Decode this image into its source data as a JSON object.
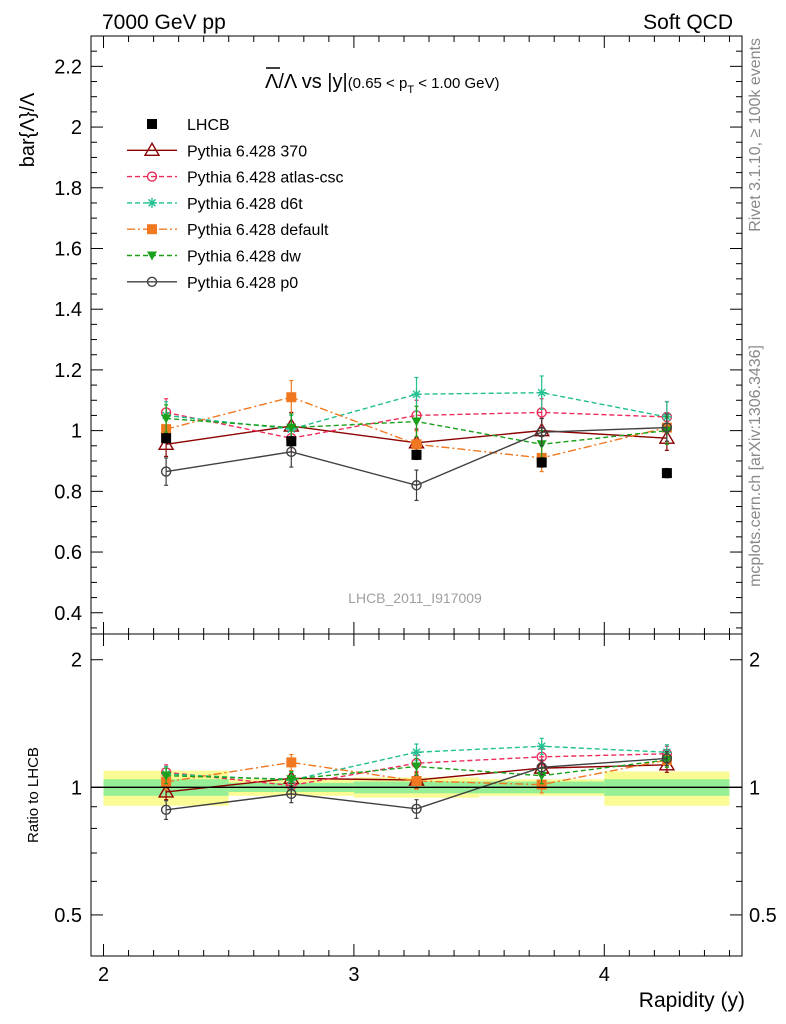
{
  "header": {
    "left": "7000 GeV pp",
    "right": "Soft QCD"
  },
  "side": {
    "top": "Rivet 3.1.10, ≥ 100k events",
    "bottom": "mcplots.cern.ch [arXiv:1306.3436]"
  },
  "chart_data": {
    "type": "line",
    "title": {
      "lambda_bar": "Λ",
      "ratio_text": "/Λ vs |y|",
      "cut_open": "(0.65 < p",
      "cut_sub": "T",
      "cut_close": " < 1.00 GeV)"
    },
    "watermark": "LHCB_2011_I917009",
    "main": {
      "ylabel": "bar{Λ}/Λ",
      "ylim": [
        0.33,
        2.3
      ],
      "yticks": [
        "0.4",
        "0.6",
        "0.8",
        "1",
        "1.2",
        "1.4",
        "1.6",
        "1.8",
        "2",
        "2.2"
      ]
    },
    "ratio": {
      "ylabel": "Ratio to LHCB",
      "ylim": [
        0.4,
        2.3
      ],
      "log": true,
      "yticks": [
        "0.5",
        "1",
        "2"
      ],
      "bands": [
        {
          "x": [
            2.0,
            2.5
          ],
          "inner": [
            0.955,
            1.045
          ],
          "outer": [
            0.905,
            1.095
          ]
        },
        {
          "x": [
            2.5,
            3.0
          ],
          "inner": [
            0.975,
            1.025
          ],
          "outer": [
            0.955,
            1.045
          ]
        },
        {
          "x": [
            3.0,
            3.5
          ],
          "inner": [
            0.968,
            1.032
          ],
          "outer": [
            0.945,
            1.055
          ]
        },
        {
          "x": [
            3.5,
            4.0
          ],
          "inner": [
            0.968,
            1.032
          ],
          "outer": [
            0.955,
            1.045
          ]
        },
        {
          "x": [
            4.0,
            4.5
          ],
          "inner": [
            0.955,
            1.045
          ],
          "outer": [
            0.905,
            1.09
          ]
        }
      ]
    },
    "xlabel": "Rapidity (y)",
    "xlim": [
      1.95,
      4.55
    ],
    "xticks": [
      "2",
      "3",
      "4"
    ],
    "x": [
      2.25,
      2.75,
      3.25,
      3.75,
      4.25
    ],
    "series": [
      {
        "name": "LHCB",
        "color": "#000000",
        "marker": "filled-square",
        "line": "none",
        "values": [
          0.975,
          0.965,
          0.92,
          0.895,
          0.86
        ],
        "errors": [
          0.015,
          0.015,
          0.015,
          0.015,
          0.015
        ],
        "ratio": null
      },
      {
        "name": "Pythia 6.428 370",
        "color": "#8b0000",
        "marker": "open-triangle",
        "line": "solid",
        "values": [
          0.955,
          1.015,
          0.96,
          1.0,
          0.975
        ],
        "errors": [
          0.04,
          0.045,
          0.045,
          0.04,
          0.04
        ],
        "ratio": [
          0.975,
          1.05,
          1.04,
          1.11,
          1.13
        ],
        "ratio_errors": [
          0.04,
          0.045,
          0.045,
          0.045,
          0.045
        ]
      },
      {
        "name": "Pythia 6.428 atlas-csc",
        "color": "#ee2c5c",
        "marker": "open-circle",
        "line": "dashed",
        "values": [
          1.06,
          0.975,
          1.05,
          1.06,
          1.045
        ],
        "errors": [
          0.045,
          0.045,
          0.05,
          0.045,
          0.05
        ],
        "ratio": [
          1.085,
          1.01,
          1.14,
          1.18,
          1.2
        ],
        "ratio_errors": [
          0.045,
          0.045,
          0.05,
          0.05,
          0.05
        ]
      },
      {
        "name": "Pythia 6.428 d6t",
        "color": "#20c090",
        "marker": "star",
        "line": "dashed",
        "values": [
          1.05,
          1.005,
          1.12,
          1.125,
          1.045
        ],
        "errors": [
          0.045,
          0.045,
          0.055,
          0.055,
          0.05
        ],
        "ratio": [
          1.075,
          1.04,
          1.21,
          1.25,
          1.21
        ],
        "ratio_errors": [
          0.045,
          0.045,
          0.055,
          0.055,
          0.05
        ]
      },
      {
        "name": "Pythia 6.428 default",
        "color": "#f07820",
        "marker": "filled-square",
        "line": "dashdot",
        "values": [
          1.005,
          1.11,
          0.955,
          0.91,
          1.01
        ],
        "errors": [
          0.045,
          0.055,
          0.045,
          0.045,
          0.045
        ],
        "ratio": [
          1.03,
          1.145,
          1.035,
          1.015,
          1.16
        ],
        "ratio_errors": [
          0.045,
          0.05,
          0.045,
          0.045,
          0.045
        ]
      },
      {
        "name": "Pythia 6.428 dw",
        "color": "#1aa01a",
        "marker": "filled-triangle-down",
        "line": "dashed",
        "values": [
          1.04,
          1.01,
          1.03,
          0.955,
          1.0
        ],
        "errors": [
          0.045,
          0.045,
          0.05,
          0.045,
          0.045
        ],
        "ratio": [
          1.065,
          1.045,
          1.12,
          1.065,
          1.16
        ],
        "ratio_errors": [
          0.045,
          0.045,
          0.05,
          0.045,
          0.045
        ]
      },
      {
        "name": "Pythia 6.428 p0",
        "color": "#404040",
        "marker": "open-circle",
        "line": "solid",
        "values": [
          0.865,
          0.93,
          0.82,
          0.995,
          1.01
        ],
        "errors": [
          0.045,
          0.05,
          0.05,
          0.045,
          0.045
        ],
        "ratio": [
          0.885,
          0.965,
          0.89,
          1.115,
          1.17
        ],
        "ratio_errors": [
          0.045,
          0.045,
          0.045,
          0.045,
          0.045
        ]
      }
    ],
    "colors": {
      "band_inner": "#96ee96",
      "band_outer": "#fbfb96"
    }
  }
}
